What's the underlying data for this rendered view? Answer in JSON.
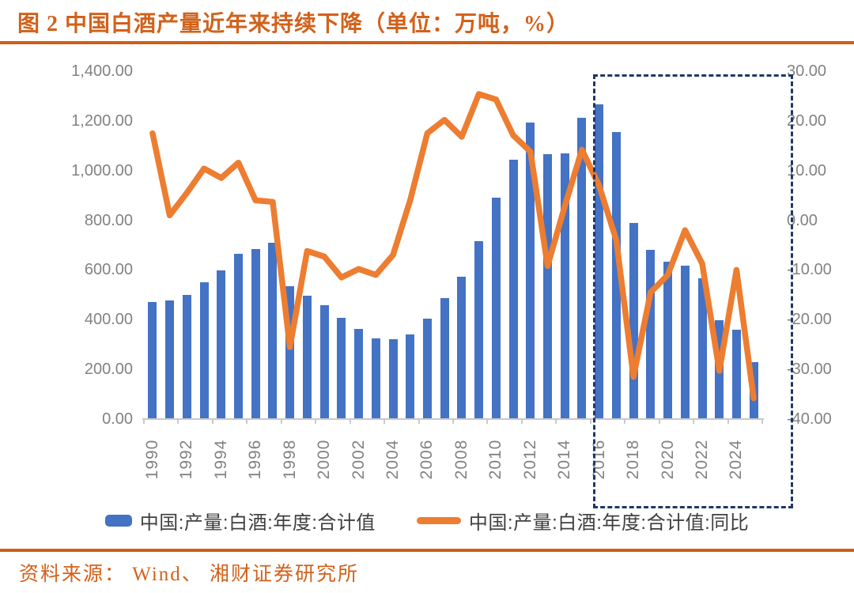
{
  "title": "图 2  中国白酒产量近年来持续下降（单位：万吨，%）",
  "source": "资料来源： Wind、 湘财证券研究所",
  "colors": {
    "bar": "#4472C4",
    "line": "#ED7D31",
    "title_orange": "#D2611A",
    "rule_orange": "#CE5E15",
    "highlight_box": "#1F3864",
    "axis_text": "#828282",
    "legend_text": "#3F3F3F",
    "axis_line": "#C9C9C9"
  },
  "legend": {
    "items": [
      {
        "label": "中国:产量:白酒:年度:合计值",
        "type": "bar"
      },
      {
        "label": "中国:产量:白酒:年度:合计值:同比",
        "type": "line"
      }
    ]
  },
  "chart_data": {
    "type": "bar",
    "title": "图 2 中国白酒产量近年来持续下降（单位：万吨，%）",
    "categories": [
      1990,
      1991,
      1992,
      1993,
      1994,
      1995,
      1996,
      1997,
      1998,
      1999,
      2000,
      2001,
      2002,
      2003,
      2004,
      2005,
      2006,
      2007,
      2008,
      2009,
      2010,
      2011,
      2012,
      2013,
      2014,
      2015,
      2016,
      2017,
      2018,
      2019,
      2020,
      2021,
      2022,
      2023,
      2024,
      2025
    ],
    "series": [
      {
        "name": "中国:产量:白酒:年度:合计值",
        "type": "bar",
        "axis": "left",
        "unit": "万吨",
        "values": [
          471,
          477,
          500,
          550,
          598,
          665,
          685,
          710,
          534,
          495,
          458,
          407,
          362,
          324,
          320,
          342,
          405,
          488,
          573,
          716,
          891,
          1043,
          1193,
          1065,
          1068,
          1213,
          1267,
          1156,
          790,
          680,
          632,
          618,
          567,
          399,
          360,
          228
        ]
      },
      {
        "name": "中国:产量:白酒:年度:合计值:同比",
        "type": "line",
        "axis": "right",
        "unit": "%",
        "values": [
          17.5,
          1.0,
          5.5,
          10.4,
          8.5,
          11.6,
          4.0,
          3.7,
          -25.5,
          -6.2,
          -7.3,
          -11.5,
          -9.8,
          -11.0,
          -7.0,
          4.0,
          17.5,
          20.2,
          16.8,
          25.4,
          24.3,
          17.1,
          13.8,
          -9.2,
          2.8,
          14.2,
          7.0,
          -4.0,
          -31.5,
          -14.5,
          -11.0,
          -2.0,
          -8.7,
          -30.3,
          -10.0,
          -35.8
        ]
      }
    ],
    "left_axis": {
      "min": 0,
      "max": 1400,
      "tick_values": [
        1400,
        1200,
        1000,
        800,
        600,
        400,
        200,
        0
      ],
      "tick_labels": [
        "1,400.00",
        "1,200.00",
        "1,000.00",
        "800.00",
        "600.00",
        "400.00",
        "200.00",
        "0.00"
      ]
    },
    "right_axis": {
      "min": -40,
      "max": 30,
      "tick_values": [
        30,
        20,
        10,
        0,
        -10,
        -20,
        -30,
        -40
      ],
      "tick_labels": [
        "30.00",
        "20.00",
        "10.00",
        "0.00",
        "-10.00",
        "-20.00",
        "-30.00",
        "-40.00"
      ]
    },
    "x_tick_labels": [
      "1990",
      "1992",
      "1994",
      "1996",
      "1998",
      "2000",
      "2002",
      "2004",
      "2006",
      "2008",
      "2010",
      "2012",
      "2014",
      "2016",
      "2018",
      "2020",
      "2022",
      "2024"
    ],
    "grid": false,
    "legend_position": "bottom",
    "annotation": {
      "highlight_range_years": "2016-2025",
      "style": "dashed-box"
    }
  }
}
